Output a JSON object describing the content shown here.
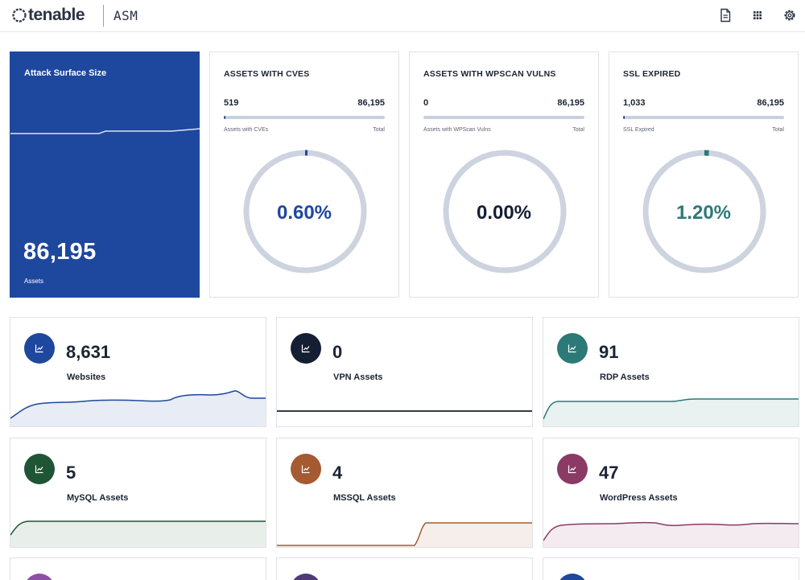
{
  "header": {
    "logo_text": "tenable",
    "product": "ASM",
    "icons": [
      "document-icon",
      "apps-grid-icon",
      "gear-icon"
    ]
  },
  "attack_surface": {
    "title": "Attack Surface Size",
    "value": "86,195",
    "caption": "Assets",
    "bg_color": "#1e479e"
  },
  "ratio_cards": [
    {
      "title": "ASSETS WITH CVES",
      "left_value": "519",
      "right_value": "86,195",
      "left_caption": "Assets with CVEs",
      "right_caption": "Total",
      "percent_text": "0.60%",
      "fraction": 0.006,
      "color": "#1e479e"
    },
    {
      "title": "ASSETS WITH WPSCAN VULNS",
      "left_value": "0",
      "right_value": "86,195",
      "left_caption": "Assets with WPScan Vulns",
      "right_caption": "Total",
      "percent_text": "0.00%",
      "fraction": 0.0,
      "color": "#151f33"
    },
    {
      "title": "SSL EXPIRED",
      "left_value": "1,033",
      "right_value": "86,195",
      "left_caption": "SSL Expired",
      "right_caption": "Total",
      "percent_text": "1.20%",
      "fraction": 0.012,
      "color": "#2b7a78"
    }
  ],
  "asset_cards": [
    {
      "value": "8,631",
      "label": "Websites",
      "color": "#1e479e",
      "icon": "chart-icon"
    },
    {
      "value": "0",
      "label": "VPN Assets",
      "color": "#151f33",
      "icon": "chart-icon"
    },
    {
      "value": "91",
      "label": "RDP Assets",
      "color": "#2b7a78",
      "icon": "chart-icon"
    },
    {
      "value": "5",
      "label": "MySQL Assets",
      "color": "#1f5434",
      "icon": "chart-icon"
    },
    {
      "value": "4",
      "label": "MSSQL Assets",
      "color": "#a55a32",
      "icon": "chart-icon"
    },
    {
      "value": "47",
      "label": "WordPress Assets",
      "color": "#8a3a64",
      "icon": "chart-icon"
    }
  ],
  "peek_colors": [
    "#8e4fa6",
    "#4f3a78",
    "#1e479e"
  ]
}
